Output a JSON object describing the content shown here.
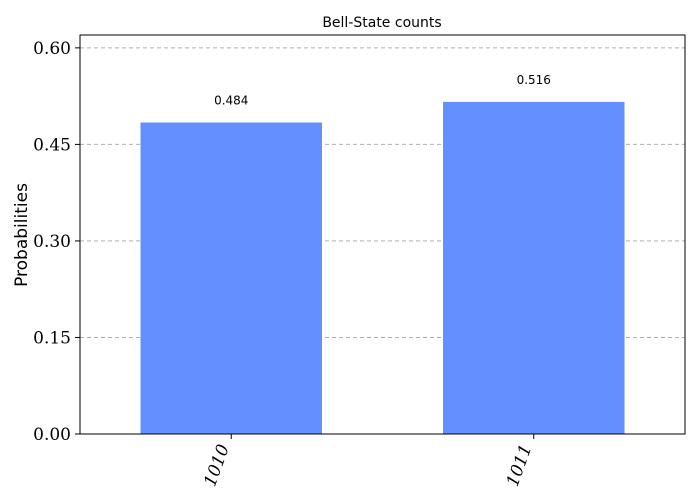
{
  "chart_data": {
    "type": "bar",
    "title": "Bell-State counts",
    "xlabel": "",
    "ylabel": "Probabilities",
    "categories": [
      "1010",
      "1011"
    ],
    "values": [
      0.484,
      0.516
    ],
    "data_labels": [
      "0.484",
      "0.516"
    ],
    "yticks": [
      0.0,
      0.15,
      0.3,
      0.45,
      0.6
    ],
    "ytick_labels": [
      "0.00",
      "0.15",
      "0.30",
      "0.45",
      "0.60"
    ],
    "ylim": [
      0,
      0.62
    ],
    "grid": "horizontal-dashed",
    "legend": "none",
    "bar_color": "#648fff",
    "grid_color": "#b0b0b0"
  }
}
